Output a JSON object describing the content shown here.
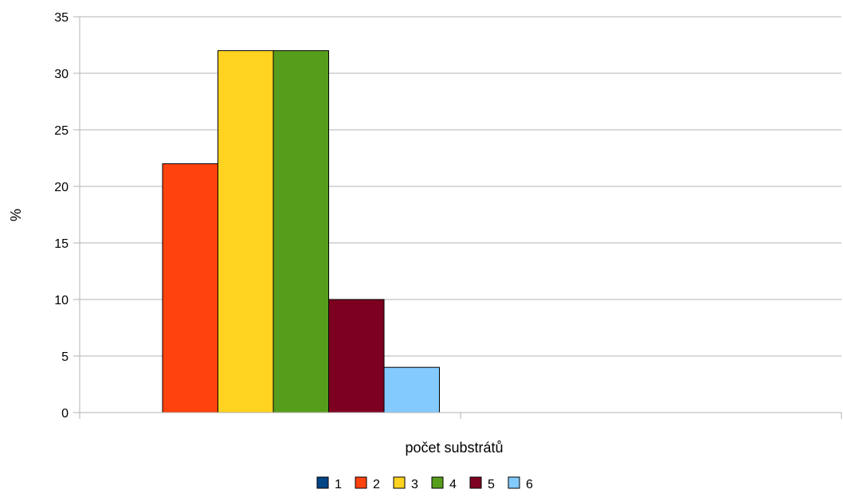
{
  "chart_data": {
    "type": "bar",
    "title": "",
    "xlabel": "počet substrátů",
    "ylabel": "%",
    "ylim": [
      0,
      35
    ],
    "yticks": [
      0,
      5,
      10,
      15,
      20,
      25,
      30,
      35
    ],
    "grid": true,
    "legend_position": "bottom",
    "categories": [
      ""
    ],
    "series": [
      {
        "name": "1",
        "values": [
          0
        ],
        "color": "#004586"
      },
      {
        "name": "2",
        "values": [
          22
        ],
        "color": "#ff420e"
      },
      {
        "name": "3",
        "values": [
          32
        ],
        "color": "#ffd320"
      },
      {
        "name": "4",
        "values": [
          32
        ],
        "color": "#579d1c"
      },
      {
        "name": "5",
        "values": [
          10
        ],
        "color": "#7e0021"
      },
      {
        "name": "6",
        "values": [
          4
        ],
        "color": "#83caff"
      }
    ]
  }
}
